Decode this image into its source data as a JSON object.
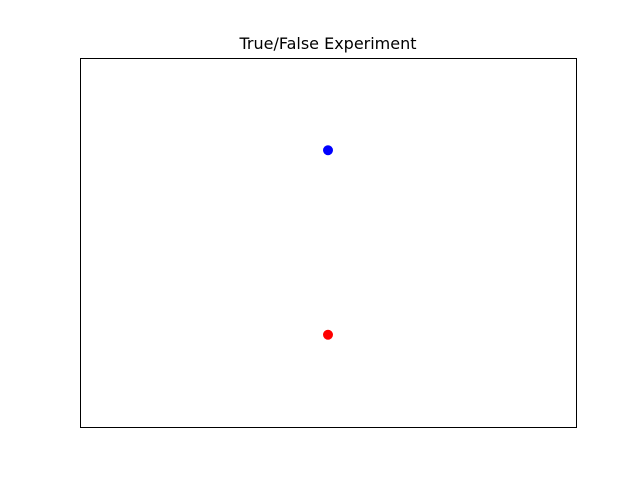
{
  "chart_data": {
    "type": "scatter",
    "title": "True/False Experiment",
    "xlabel": "",
    "ylabel": "",
    "axes_visible": false,
    "grid": false,
    "xlim": [
      0,
      2
    ],
    "ylim": [
      -0.5,
      1.5
    ],
    "series": [
      {
        "color": "#0000ff",
        "points": [
          {
            "x": 1,
            "y": 1
          }
        ]
      },
      {
        "color": "#ff0000",
        "points": [
          {
            "x": 1,
            "y": 0
          }
        ]
      }
    ]
  }
}
